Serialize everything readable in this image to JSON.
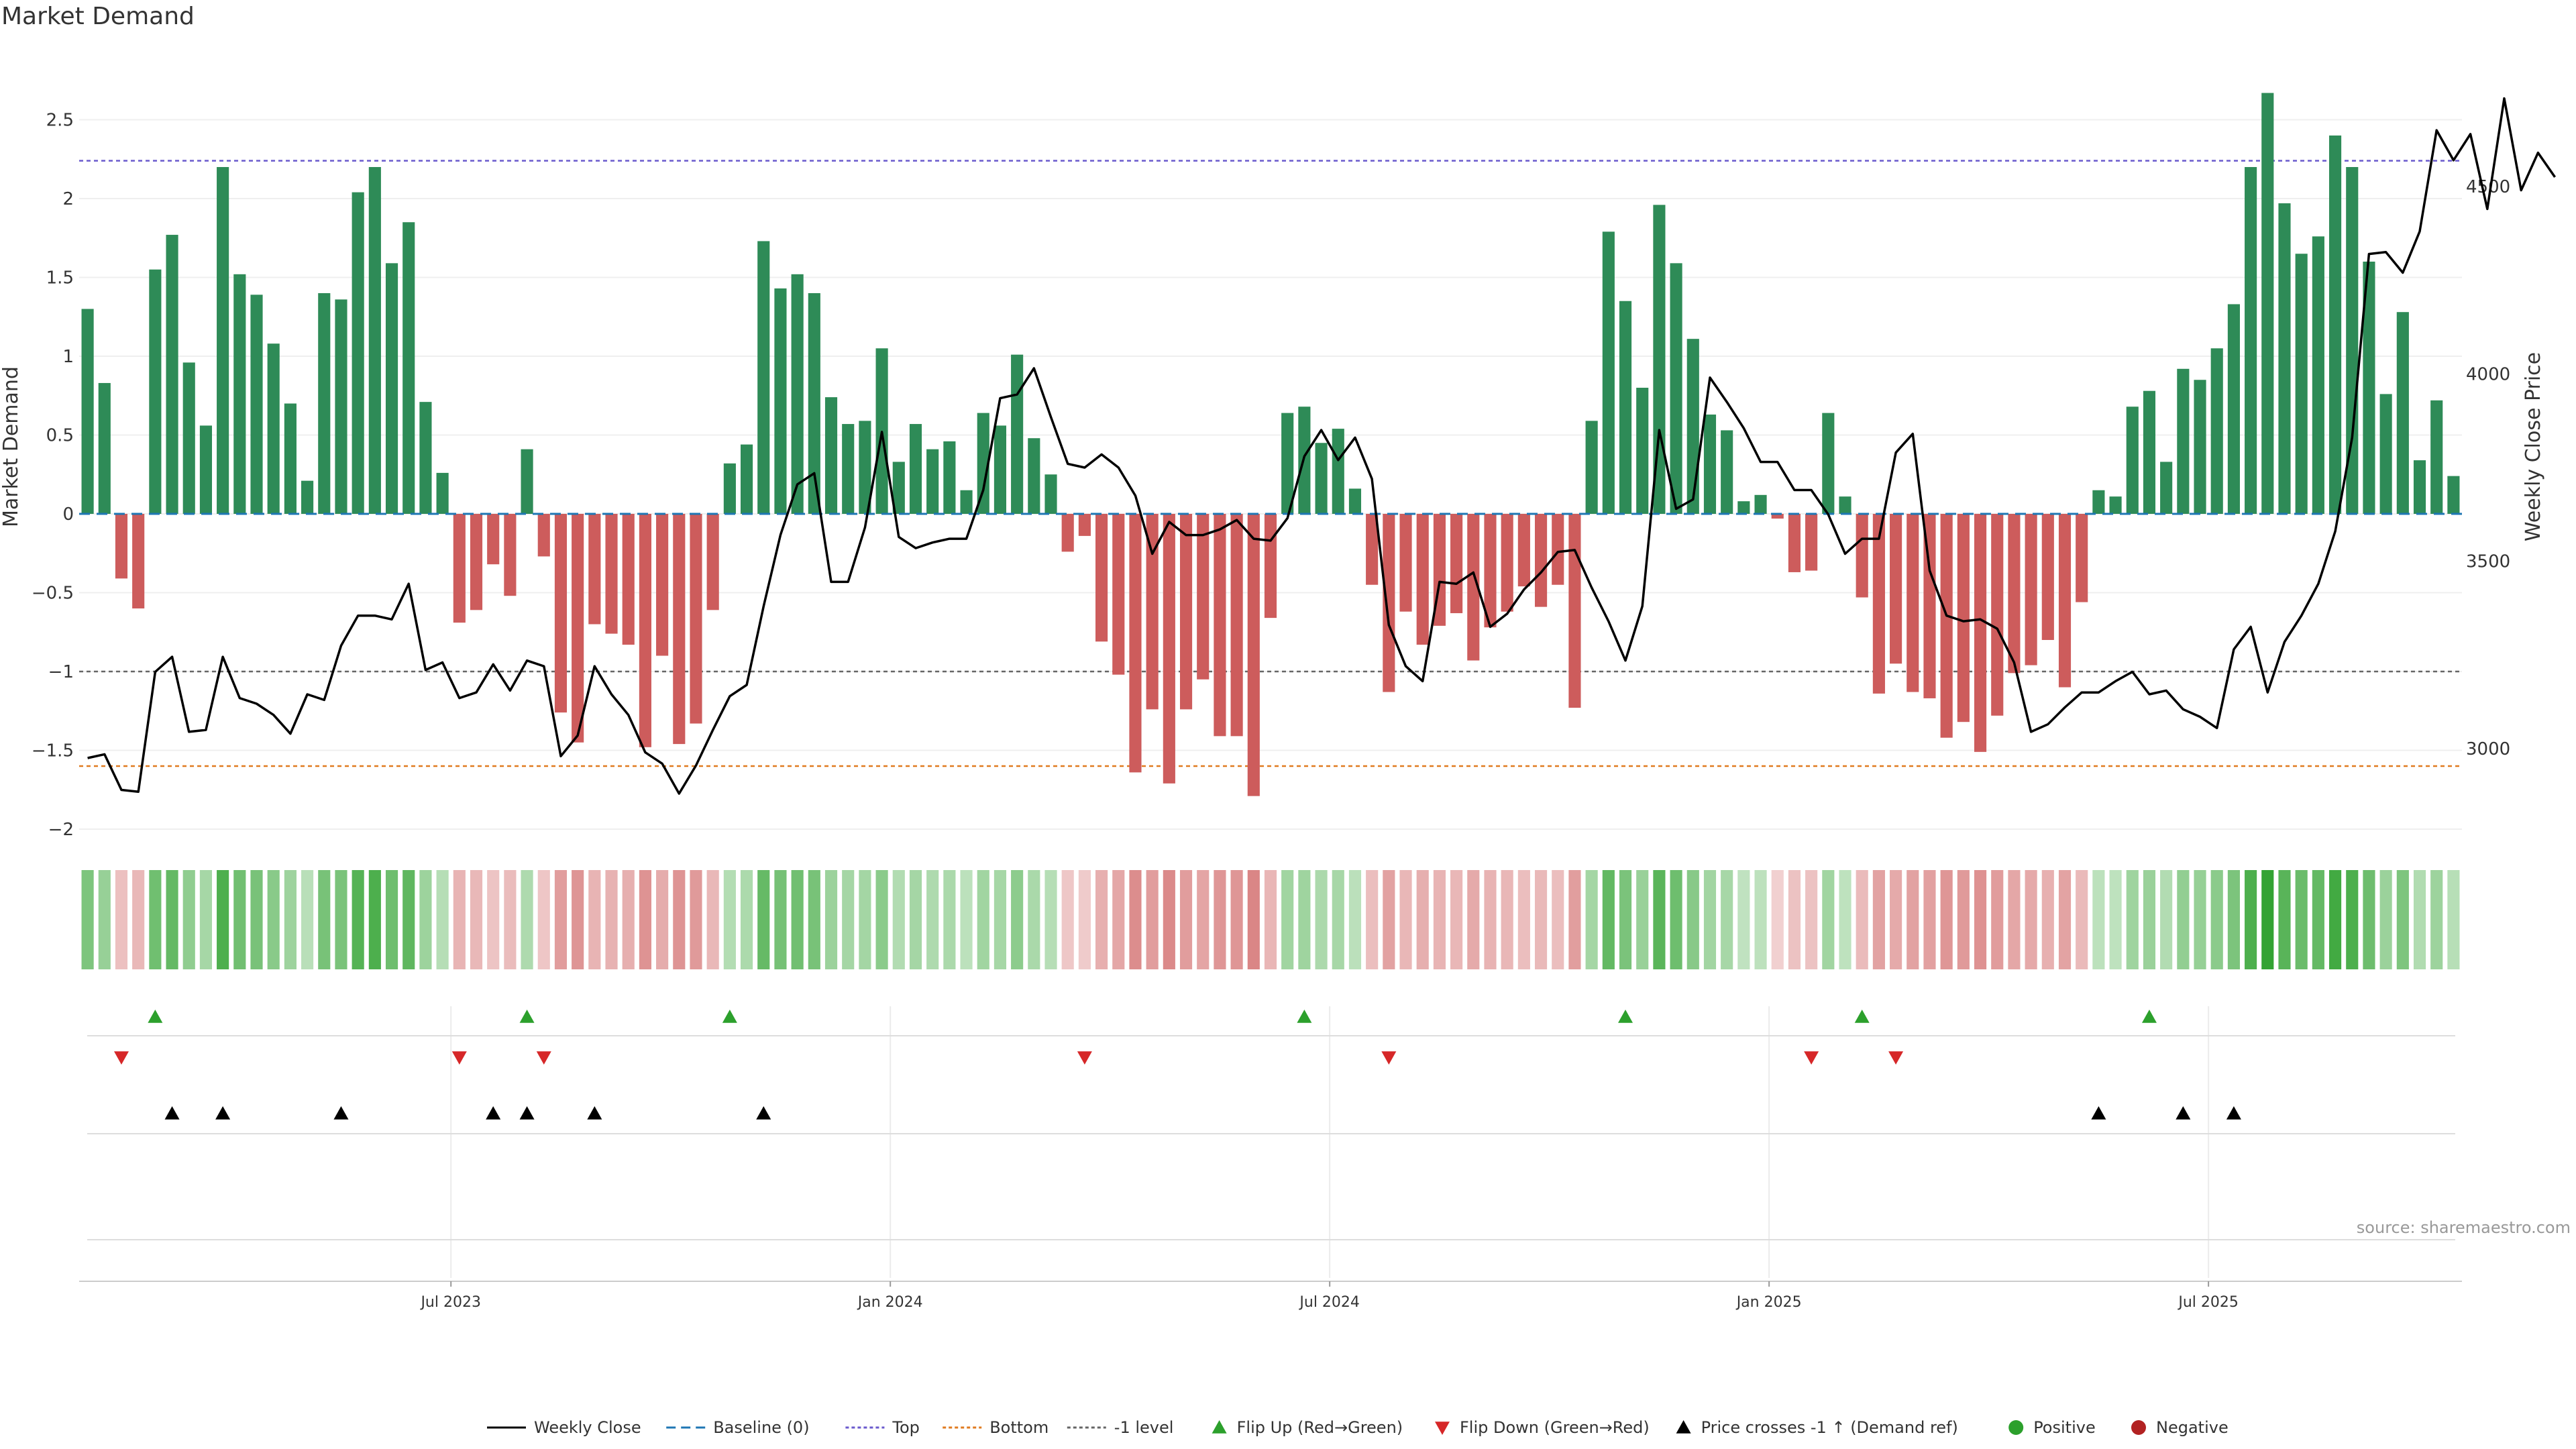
{
  "title": "Market Demand",
  "source": "source: sharemaestro.com",
  "colors": {
    "green": "#2e8b57",
    "red": "#cd5c5c",
    "price": "#000000",
    "baseline": "#1f77b4",
    "top": "#6a5acd",
    "bottom": "#e07b20",
    "minus_one": "#666666",
    "flip_up": "#2ca02c",
    "flip_down": "#d62728",
    "cross": "#000000",
    "positive": "#2ca02c",
    "negative": "#b22222"
  },
  "chart_data": {
    "type": "bar",
    "title": "Market Demand",
    "ylabel": "Market Demand",
    "y2label": "Weekly Close Price",
    "ylim": [
      -2.1,
      2.95
    ],
    "y2lim": [
      2800,
      4850
    ],
    "yticks": [
      "2.5",
      "2",
      "1.5",
      "1",
      "0.5",
      "0",
      "−0.5",
      "−1",
      "−1.5",
      "−2"
    ],
    "y2ticks": [
      "4500",
      "4000",
      "3500",
      "3000"
    ],
    "xticks": [
      "Jul 2023",
      "Jan 2024",
      "Jul 2024",
      "Jan 2025",
      "Jul 2025"
    ],
    "xtick_week_index": [
      22,
      48,
      74,
      100,
      126
    ],
    "reference_lines": {
      "baseline": 0,
      "top": 2.24,
      "bottom": -1.6,
      "minus_one": -1.0
    },
    "demand": [
      1.3,
      0.83,
      -0.41,
      -0.6,
      1.55,
      1.77,
      0.96,
      0.56,
      2.2,
      1.52,
      1.39,
      1.08,
      0.7,
      0.21,
      1.4,
      1.36,
      2.04,
      2.2,
      1.59,
      1.85,
      0.71,
      0.26,
      -0.69,
      -0.61,
      -0.32,
      -0.52,
      0.41,
      -0.27,
      -1.26,
      -1.45,
      -0.7,
      -0.76,
      -0.83,
      -1.48,
      -0.9,
      -1.46,
      -1.33,
      -0.61,
      0.32,
      0.44,
      1.73,
      1.43,
      1.52,
      1.4,
      0.74,
      0.57,
      0.59,
      1.05,
      0.33,
      0.57,
      0.41,
      0.46,
      0.15,
      0.64,
      0.56,
      1.01,
      0.48,
      0.25,
      -0.24,
      -0.14,
      -0.81,
      -1.02,
      -1.64,
      -1.24,
      -1.71,
      -1.24,
      -1.05,
      -1.41,
      -1.41,
      -1.79,
      -0.66,
      0.64,
      0.68,
      0.45,
      0.54,
      0.16,
      -0.45,
      -1.13,
      -0.62,
      -0.83,
      -0.71,
      -0.63,
      -0.93,
      -0.72,
      -0.62,
      -0.46,
      -0.59,
      -0.45,
      -1.23,
      0.59,
      1.79,
      1.35,
      0.8,
      1.96,
      1.59,
      1.11,
      0.63,
      0.53,
      0.08,
      0.12,
      -0.03,
      -0.37,
      -0.36,
      0.64,
      0.11,
      -0.53,
      -1.14,
      -0.95,
      -1.13,
      -1.17,
      -1.42,
      -1.32,
      -1.51,
      -1.28,
      -1.01,
      -0.96,
      -0.8,
      -1.1,
      -0.56,
      0.15,
      0.11,
      0.68,
      0.78,
      0.33,
      0.92,
      0.85,
      1.05,
      1.33,
      2.2,
      2.67,
      1.97,
      1.65,
      1.76,
      2.4,
      2.2,
      1.6,
      0.76,
      1.28,
      0.34,
      0.72,
      0.24
    ],
    "price": [
      2975,
      2985,
      2890,
      2885,
      3205,
      3245,
      3045,
      3050,
      3245,
      3135,
      3120,
      3090,
      3040,
      3145,
      3130,
      3275,
      3355,
      3355,
      3345,
      3440,
      3210,
      3230,
      3135,
      3150,
      3225,
      3155,
      3235,
      3220,
      2980,
      3035,
      3220,
      3145,
      3090,
      2990,
      2960,
      2880,
      2955,
      3050,
      3140,
      3170,
      3380,
      3570,
      3705,
      3735,
      3445,
      3445,
      3590,
      3845,
      3565,
      3535,
      3550,
      3560,
      3560,
      3690,
      3935,
      3945,
      4015,
      3885,
      3760,
      3750,
      3785,
      3750,
      3675,
      3520,
      3605,
      3570,
      3570,
      3585,
      3610,
      3560,
      3555,
      3615,
      3780,
      3850,
      3770,
      3830,
      3720,
      3330,
      3220,
      3180,
      3445,
      3440,
      3470,
      3325,
      3360,
      3425,
      3470,
      3525,
      3530,
      3430,
      3340,
      3235,
      3380,
      3850,
      3640,
      3665,
      3990,
      3925,
      3855,
      3765,
      3765,
      3690,
      3690,
      3625,
      3520,
      3560,
      3560,
      3790,
      3840,
      3475,
      3355,
      3340,
      3345,
      3320,
      3230,
      3045,
      3065,
      3110,
      3150,
      3150,
      3180,
      3205,
      3145,
      3155,
      3105,
      3085,
      3055,
      3265,
      3325,
      3150,
      3285,
      3355,
      3440,
      3580,
      3830,
      4320,
      4325,
      4270,
      4380,
      4650,
      4570,
      4640,
      4440,
      4735,
      4490,
      4590,
      4525
    ],
    "flip_up_weeks": [
      4,
      26,
      38,
      72,
      91,
      105,
      122
    ],
    "flip_down_weeks": [
      2,
      22,
      27,
      59,
      77,
      102,
      107
    ],
    "cross_weeks": [
      5,
      8,
      15,
      24,
      26,
      30,
      40,
      119,
      124,
      127
    ],
    "legend": [
      "Weekly Close",
      "Baseline (0)",
      "Top",
      "Bottom",
      "-1 level",
      "Flip Up (Red→Green)",
      "Flip Down (Green→Red)",
      "Price crosses -1 ↑ (Demand ref)",
      "Positive",
      "Negative"
    ]
  }
}
